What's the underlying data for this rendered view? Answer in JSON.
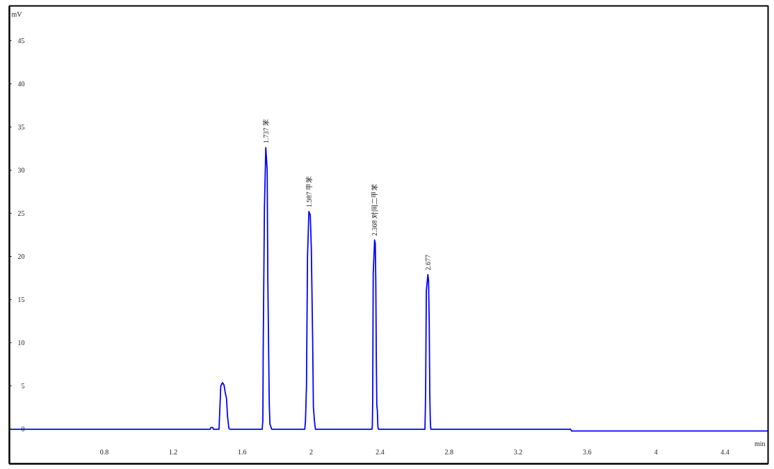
{
  "chart_data": {
    "type": "line",
    "xlabel": "min",
    "ylabel": "mV",
    "xlim": [
      0.25,
      4.65
    ],
    "ylim": [
      -4,
      49
    ],
    "xticks": [
      0.8,
      1.2,
      1.6,
      2,
      2.4,
      2.8,
      3.2,
      3.6,
      4,
      4.4
    ],
    "yticks": [
      0,
      5,
      10,
      15,
      20,
      25,
      30,
      35,
      40,
      45
    ],
    "line_style": "solid",
    "x": [
      0.25,
      1.415,
      1.418,
      1.43,
      1.433,
      1.466,
      1.468,
      1.476,
      1.486,
      1.495,
      1.502,
      1.509,
      1.515,
      1.523,
      1.529,
      1.716,
      1.72,
      1.722,
      1.729,
      1.737,
      1.745,
      1.749,
      1.757,
      1.761,
      1.771,
      1.963,
      1.967,
      1.973,
      1.979,
      1.987,
      1.995,
      2.001,
      2.009,
      2.013,
      2.019,
      2.025,
      2.353,
      2.355,
      2.357,
      2.36,
      2.368,
      2.372,
      2.375,
      2.378,
      2.381,
      2.384,
      2.387,
      2.39,
      2.66,
      2.662,
      2.664,
      2.668,
      2.677,
      2.681,
      2.685,
      2.688,
      2.691,
      2.694,
      3.505,
      3.51,
      4.65
    ],
    "series": [
      {
        "color": "#0000ff",
        "values": [
          0,
          0,
          0.2,
          0.2,
          0,
          0,
          1.1,
          5.0,
          5.4,
          5.1,
          4.2,
          3.6,
          1.5,
          0.1,
          0,
          0,
          1,
          9.3,
          25.5,
          32.6,
          30,
          17,
          3,
          0.6,
          0,
          0,
          0.9,
          5,
          20,
          25.2,
          24.8,
          21,
          10,
          2.6,
          1,
          0,
          0,
          0.5,
          3.4,
          18,
          21.9,
          21.5,
          17,
          8,
          2.7,
          2.2,
          0.3,
          0,
          0,
          2.0,
          4.4,
          16,
          17.9,
          17.2,
          12,
          4.2,
          1.0,
          0,
          0,
          -0.2,
          -0.2
        ]
      }
    ],
    "annotations": [
      {
        "text": "1.737 苯",
        "x": 1.737,
        "y": 32.6
      },
      {
        "text": "1.987 甲苯",
        "x": 1.987,
        "y": 25.2
      },
      {
        "text": "2.368 对间二甲苯",
        "x": 2.368,
        "y": 21.9
      },
      {
        "text": "2.677",
        "x": 2.677,
        "y": 17.9
      }
    ]
  }
}
